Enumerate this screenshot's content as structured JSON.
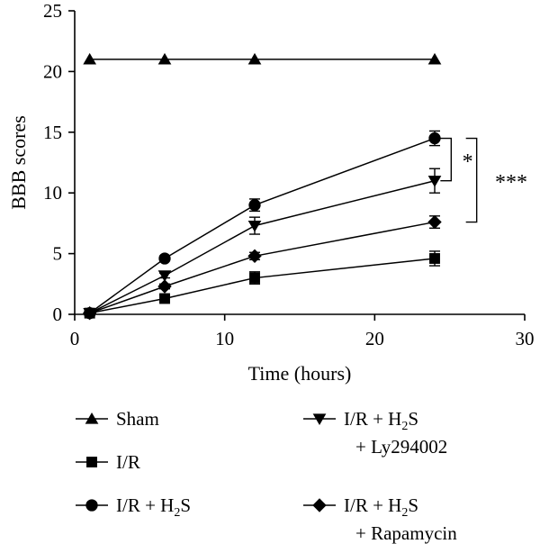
{
  "chart_data": {
    "type": "line",
    "xlabel": "Time (hours)",
    "ylabel": "BBB scores",
    "xlim": [
      0,
      30
    ],
    "ylim": [
      0,
      25
    ],
    "xticks": [
      0,
      10,
      20,
      30
    ],
    "yticks": [
      0,
      5,
      10,
      15,
      20,
      25
    ],
    "grid": false,
    "legend_position": "bottom",
    "x": [
      1,
      6,
      12,
      24
    ],
    "series": [
      {
        "name": "Sham",
        "marker": "triangle-up",
        "values": [
          21,
          21,
          21,
          21
        ],
        "errors": [
          0,
          0,
          0,
          0
        ]
      },
      {
        "name": "I/R",
        "marker": "square",
        "values": [
          0.1,
          1.3,
          3.0,
          4.6
        ],
        "errors": [
          0.2,
          0.3,
          0.5,
          0.6
        ]
      },
      {
        "name": "I/R + H2S",
        "name_main": "I/R + H",
        "name_sub": "2",
        "name_tail": "S",
        "marker": "circle",
        "values": [
          0.1,
          4.6,
          9.0,
          14.5
        ],
        "errors": [
          0.2,
          0.2,
          0.5,
          0.6
        ]
      },
      {
        "name": "I/R + H2S + Ly294002",
        "name_main": "I/R + H",
        "name_sub": "2",
        "name_tail": "S",
        "name_line2": "+ Ly294002",
        "marker": "triangle-down",
        "values": [
          0.1,
          3.2,
          7.3,
          11.0
        ],
        "errors": [
          0.2,
          0.2,
          0.7,
          1.0
        ]
      },
      {
        "name": "I/R + H2S + Rapamycin",
        "name_main": "I/R + H",
        "name_sub": "2",
        "name_tail": "S",
        "name_line2": "+ Rapamycin",
        "marker": "diamond",
        "values": [
          0.1,
          2.3,
          4.8,
          7.6
        ],
        "errors": [
          0.2,
          0.2,
          0.3,
          0.5
        ]
      }
    ],
    "annotations": [
      {
        "text": "*",
        "from_series": "I/R + H2S",
        "to_series": "I/R + H2S + Ly294002"
      },
      {
        "text": "***",
        "from_series": "I/R + H2S",
        "to_series": "I/R + H2S + Rapamycin"
      }
    ]
  }
}
